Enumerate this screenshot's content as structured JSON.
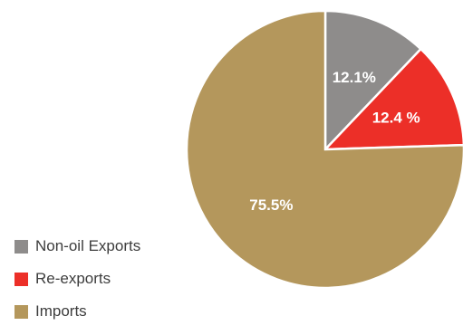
{
  "chart_data": {
    "type": "pie",
    "title": "",
    "start_angle_deg": 0,
    "direction": "clockwise",
    "slices": [
      {
        "label": "Non-oil Exports",
        "value": 12.1,
        "value_label": "12.1%",
        "color": "#8e8c8b"
      },
      {
        "label": "Re-exports",
        "value": 12.4,
        "value_label": "12.4 %",
        "color": "#ec2f28"
      },
      {
        "label": "Imports",
        "value": 75.5,
        "value_label": "75.5%",
        "color": "#b4975c"
      }
    ],
    "legend": {
      "position": "bottom-left",
      "entries": [
        "Non-oil Exports",
        "Re-exports",
        "Imports"
      ]
    }
  }
}
